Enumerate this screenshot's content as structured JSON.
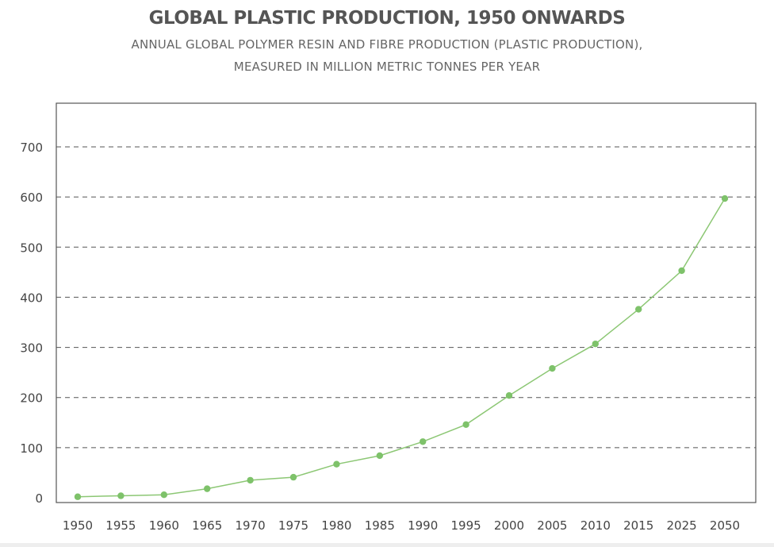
{
  "chart_data": {
    "type": "line",
    "title": "GLOBAL PLASTIC PRODUCTION, 1950 ONWARDS",
    "subtitle_lines": [
      "ANNUAL GLOBAL POLYMER RESIN AND FIBRE PRODUCTION (PLASTIC PRODUCTION),",
      "MEASURED IN MILLION METRIC TONNES PER YEAR"
    ],
    "categories": [
      "1950",
      "1955",
      "1960",
      "1965",
      "1970",
      "1975",
      "1980",
      "1985",
      "1990",
      "1995",
      "2000",
      "2005",
      "2010",
      "2015",
      "2025",
      "2050"
    ],
    "series": [
      {
        "values": [
          2,
          4,
          6,
          18,
          35,
          41,
          67,
          84,
          112,
          146,
          204,
          258,
          307,
          376,
          453,
          597
        ]
      }
    ],
    "y_ticks": [
      0,
      100,
      200,
      300,
      400,
      500,
      600,
      700
    ],
    "ylim": [
      0,
      800
    ],
    "grid": "horizontal dashed",
    "line_color": "#8cc774",
    "point_color": "#7ec26a",
    "grid_color": "#555555",
    "axis_color": "#555555"
  }
}
